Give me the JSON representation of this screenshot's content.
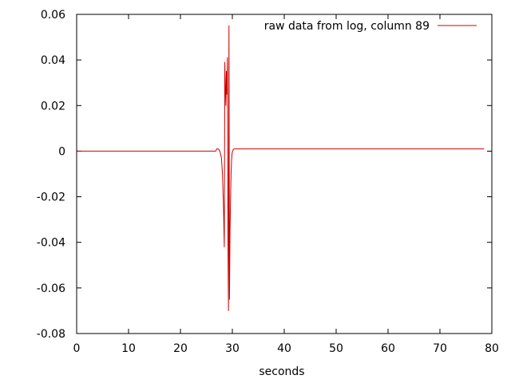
{
  "chart_data": {
    "type": "line",
    "title": "",
    "xlabel": "seconds",
    "ylabel": "",
    "xlim": [
      0,
      80
    ],
    "ylim": [
      -0.08,
      0.06
    ],
    "xticks": [
      0,
      10,
      20,
      30,
      40,
      50,
      60,
      70,
      80
    ],
    "xtick_labels": [
      "0",
      "10",
      "20",
      "30",
      "40",
      "50",
      "60",
      "70",
      "80"
    ],
    "yticks": [
      -0.08,
      -0.06,
      -0.04,
      -0.02,
      0,
      0.02,
      0.04,
      0.06
    ],
    "ytick_labels": [
      "-0.08",
      "-0.06",
      "-0.04",
      "-0.02",
      "0",
      "0.02",
      "0.04",
      "0.06"
    ],
    "grid": false,
    "legend_position": "top-right",
    "series": [
      {
        "name": "raw data from log, column 89",
        "color": "#cc0000",
        "x": [
          0,
          26.8,
          27.0,
          27.3,
          27.6,
          27.9,
          28.1,
          28.3,
          28.45,
          28.55,
          28.65,
          28.75,
          28.85,
          28.95,
          29.05,
          29.15,
          29.25,
          29.35,
          29.45,
          29.55,
          29.65,
          29.75,
          29.85,
          29.95,
          30.05,
          30.2,
          30.4,
          30.6,
          30.9,
          31.3,
          35,
          78.5
        ],
        "y": [
          0.0,
          0.0,
          0.001,
          0.001,
          0.0,
          -0.003,
          -0.01,
          -0.025,
          -0.042,
          0.039,
          0.028,
          0.02,
          0.035,
          0.025,
          0.041,
          -0.038,
          -0.07,
          0.055,
          -0.065,
          -0.035,
          -0.022,
          -0.01,
          -0.004,
          -0.001,
          0.0,
          0.0008,
          0.001,
          0.001,
          0.001,
          0.001,
          0.001,
          0.001
        ]
      }
    ]
  }
}
